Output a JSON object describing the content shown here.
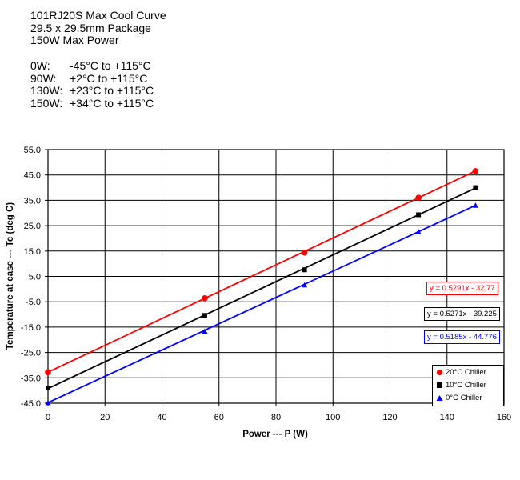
{
  "title_lines": [
    "101RJ20S Max Cool Curve",
    "29.5 x 29.5mm Package",
    "150W Max Power"
  ],
  "ranges": [
    {
      "label": "0W:",
      "range": "-45°C to +115°C"
    },
    {
      "label": "90W:",
      "range": "+2°C to +115°C"
    },
    {
      "label": "130W:",
      "range": "+23°C to +115°C"
    },
    {
      "label": "150W:",
      "range": "+34°C to +115°C"
    }
  ],
  "chart_data": {
    "type": "line",
    "xlabel": "Power --- P (W)",
    "ylabel": "Temperature at case --- Tc (deg C)",
    "xlim": [
      0,
      160
    ],
    "ylim": [
      -45,
      55
    ],
    "x_ticks": [
      0,
      20,
      40,
      60,
      80,
      100,
      120,
      140,
      160
    ],
    "y_ticks": [
      55.0,
      45.0,
      35.0,
      25.0,
      15.0,
      5.0,
      -5.0,
      -15.0,
      -25.0,
      -35.0,
      -45.0
    ],
    "y_tick_labels": [
      "55.0",
      "45.0",
      "35.0",
      "25.0",
      "15.0",
      "5.0",
      "-5.0",
      "-15.0",
      "-25.0",
      "-35.0",
      "-45.0"
    ],
    "grid": true,
    "legend_position": "bottom-right",
    "series": [
      {
        "name": "20°C Chiller",
        "color": "#ff0000",
        "marker": "circle",
        "x": [
          0,
          55,
          90,
          130,
          150
        ],
        "y": [
          -32.8,
          -3.6,
          14.4,
          36.0,
          46.5
        ],
        "trendline": {
          "slope": 0.5291,
          "intercept": -32.77,
          "label": "y = 0.5291x - 32.77"
        }
      },
      {
        "name": "10°C Chiller",
        "color": "#000000",
        "marker": "square",
        "x": [
          0,
          55,
          90,
          130,
          150
        ],
        "y": [
          -39.0,
          -10.4,
          7.6,
          29.3,
          40.0
        ],
        "trendline": {
          "slope": 0.5271,
          "intercept": -39.225,
          "label": "y = 0.5271x - 39.225"
        }
      },
      {
        "name": "0°C Chiller",
        "color": "#0000ff",
        "marker": "triangle",
        "x": [
          0,
          55,
          90,
          130,
          150
        ],
        "y": [
          -44.8,
          -16.6,
          1.6,
          22.6,
          33.0
        ],
        "trendline": {
          "slope": 0.5185,
          "intercept": -44.776,
          "label": "y = 0.5185x - 44.776"
        }
      }
    ]
  }
}
